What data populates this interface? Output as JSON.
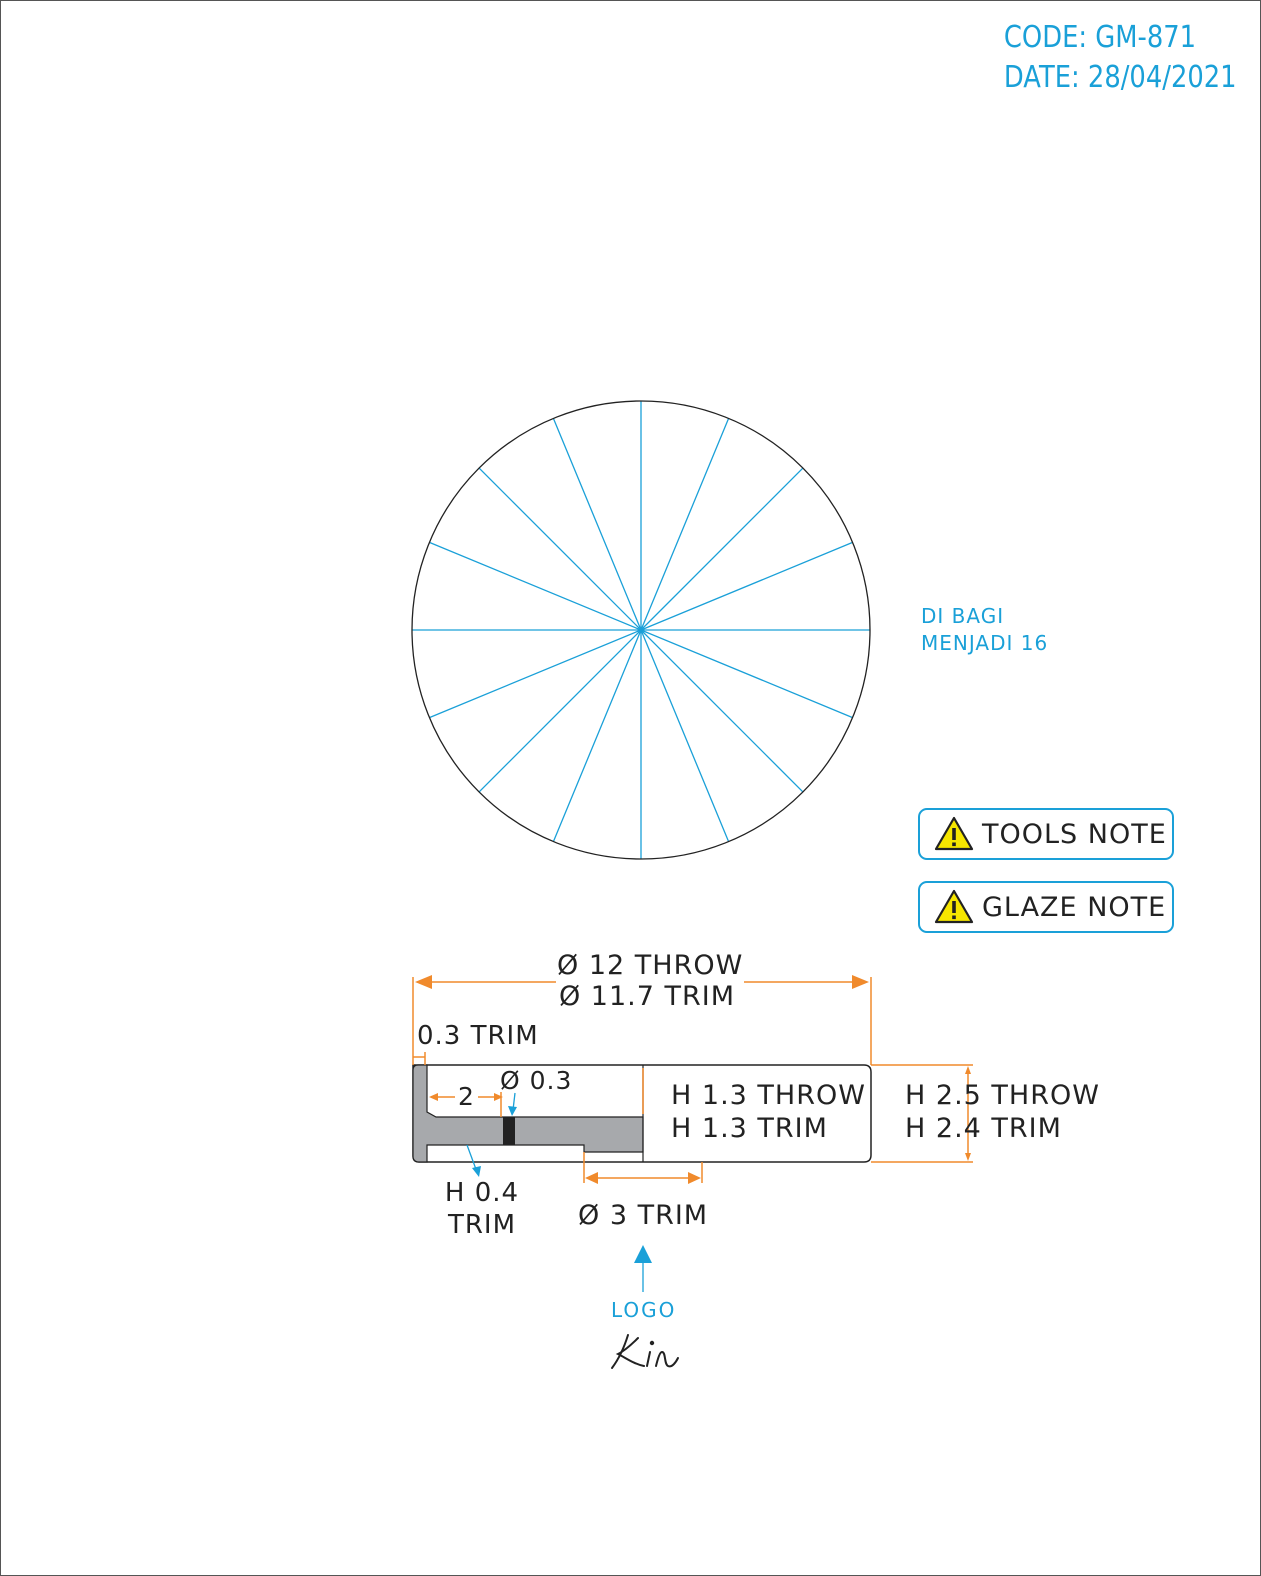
{
  "header": {
    "code": "CODE: GM-871",
    "date": "DATE: 28/04/2021"
  },
  "plan_view": {
    "divisions": 16,
    "note_line1": "DI BAGI",
    "note_line2": "MENJADI 16"
  },
  "notes": {
    "tools": "TOOLS NOTE",
    "glaze": "GLAZE NOTE"
  },
  "section_view": {
    "diameter_line1": "Ø 12 THROW",
    "diameter_line2": "Ø 11.7 TRIM",
    "rim_trim": "0.3 TRIM",
    "inner_offset": "2",
    "hole_diameter": "Ø 0.3",
    "inner_height_line1": "H 1.3 THROW",
    "inner_height_line2": "H 1.3 TRIM",
    "total_height_line1": "H 2.5 THROW",
    "total_height_line2": "H 2.4 TRIM",
    "foot_height_line1": "H 0.4",
    "foot_height_line2": "TRIM",
    "foot_diameter": "Ø 3 TRIM"
  },
  "logo": {
    "label": "LOGO",
    "signature": "Kin"
  },
  "colors": {
    "accent_blue": "#1aa0d8",
    "dimension_orange": "#f08a2c",
    "section_fill": "#a7a9ac"
  }
}
